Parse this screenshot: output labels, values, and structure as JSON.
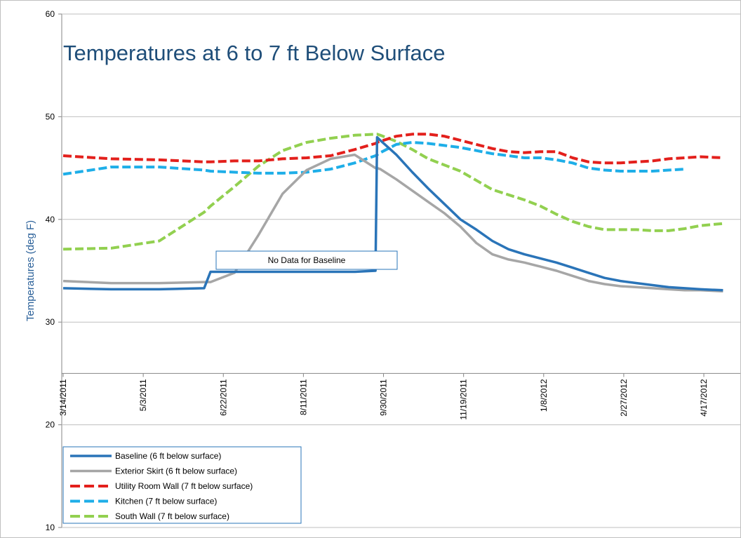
{
  "chart_data": {
    "type": "line",
    "title": "Temperatures at 6 to 7 ft Below Surface",
    "y_label": "Temperatures (deg F)",
    "annotation": "No Data for Baseline",
    "x": [
      "3/14/2011",
      "4/13/2011",
      "5/13/2011",
      "6/10/2011",
      "6/14/2011",
      "6/29/2011",
      "7/14/2011",
      "7/29/2011",
      "8/13/2011",
      "8/28/2011",
      "9/12/2011",
      "9/25/2011",
      "9/26/2011",
      "9/28/2011",
      "10/8/2011",
      "10/18/2011",
      "10/28/2011",
      "11/7/2011",
      "11/17/2011",
      "11/27/2011",
      "12/7/2011",
      "12/17/2011",
      "12/27/2011",
      "1/6/2012",
      "1/16/2012",
      "1/26/2012",
      "2/5/2012",
      "2/15/2012",
      "2/25/2012",
      "3/6/2012",
      "3/16/2012",
      "3/26/2012",
      "4/5/2012",
      "4/15/2012",
      "4/29/2012"
    ],
    "xlim": [
      "3/14/2011",
      "5/1/2012"
    ],
    "xticks": [
      "3/14/2011",
      "5/3/2011",
      "6/22/2011",
      "8/11/2011",
      "9/30/2011",
      "11/19/2011",
      "1/8/2012",
      "2/27/2012",
      "4/17/2012"
    ],
    "ylim": [
      10,
      60
    ],
    "yticks": [
      10,
      20,
      30,
      40,
      50,
      60
    ],
    "x_axis_crosses": 25,
    "grid": true,
    "legend": "bottom-left",
    "series": [
      {
        "name": "Baseline (6 ft below surface)",
        "color": "#2a74b8",
        "dashed": false,
        "values": [
          33.3,
          33.2,
          33.2,
          33.3,
          34.9,
          34.9,
          34.9,
          34.9,
          34.9,
          34.9,
          34.9,
          35.0,
          48.0,
          47.7,
          46.3,
          44.6,
          43.0,
          41.5,
          40.0,
          39.0,
          37.9,
          37.1,
          36.6,
          36.2,
          35.8,
          35.3,
          34.8,
          34.3,
          34.0,
          33.8,
          33.6,
          33.4,
          33.3,
          33.2,
          33.1
        ]
      },
      {
        "name": "Exterior Skirt (6 ft below surface)",
        "color": "#a6a6a6",
        "dashed": false,
        "values": [
          34.0,
          33.8,
          33.8,
          33.9,
          33.9,
          34.8,
          38.5,
          42.5,
          44.8,
          45.9,
          46.3,
          45.0,
          45.0,
          44.9,
          43.9,
          42.8,
          41.7,
          40.6,
          39.3,
          37.7,
          36.6,
          36.1,
          35.8,
          35.4,
          35.0,
          34.5,
          34.0,
          33.7,
          33.5,
          33.4,
          33.3,
          33.2,
          33.1,
          33.1,
          33.0
        ]
      },
      {
        "name": "Utility Room Wall (7 ft below surface)",
        "color": "#e3201c",
        "dashed": true,
        "values": [
          46.2,
          45.9,
          45.8,
          45.6,
          45.6,
          45.7,
          45.7,
          45.9,
          46.0,
          46.2,
          46.8,
          47.4,
          47.5,
          47.6,
          48.1,
          48.3,
          48.3,
          48.1,
          47.7,
          47.3,
          46.9,
          46.6,
          46.5,
          46.6,
          46.6,
          46.0,
          45.6,
          45.5,
          45.5,
          45.6,
          45.7,
          45.9,
          46.0,
          46.1,
          46.0
        ]
      },
      {
        "name": "Kitchen (7 ft below surface)",
        "color": "#1eaee8",
        "dashed": true,
        "values": [
          44.4,
          45.1,
          45.1,
          44.8,
          44.7,
          44.6,
          44.5,
          44.5,
          44.6,
          44.9,
          45.5,
          46.2,
          46.3,
          46.5,
          47.3,
          47.5,
          47.4,
          47.2,
          47.0,
          46.7,
          46.4,
          46.2,
          46.0,
          46.0,
          45.8,
          45.5,
          45.0,
          44.8,
          44.7,
          44.7,
          44.7,
          44.8,
          44.9,
          null,
          null
        ]
      },
      {
        "name": "South Wall (7 ft below surface)",
        "color": "#92d050",
        "dashed": true,
        "values": [
          37.1,
          37.2,
          37.9,
          40.7,
          41.3,
          43.2,
          45.2,
          46.7,
          47.5,
          47.9,
          48.2,
          48.3,
          48.3,
          48.2,
          47.6,
          46.8,
          45.9,
          45.3,
          44.7,
          43.8,
          42.9,
          42.4,
          41.9,
          41.3,
          40.5,
          39.8,
          39.3,
          39.0,
          39.0,
          39.0,
          38.9,
          38.9,
          39.1,
          39.4,
          39.6
        ]
      }
    ]
  }
}
